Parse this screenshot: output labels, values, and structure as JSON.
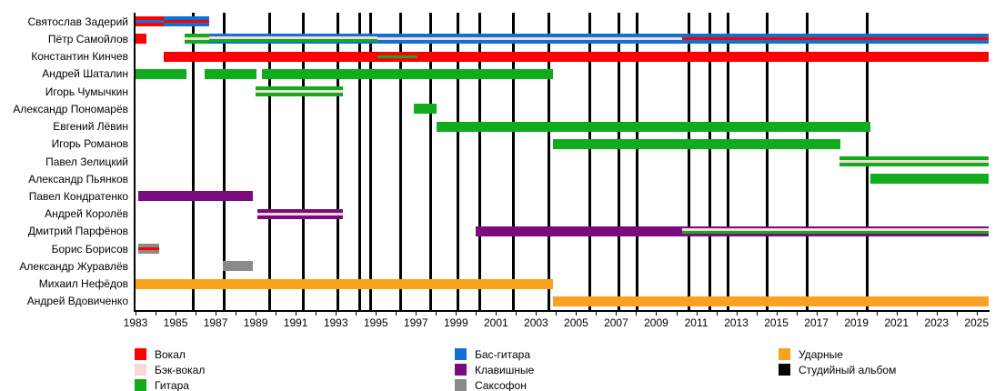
{
  "chart_data": {
    "type": "timeline",
    "title": "",
    "x_axis": {
      "min": 1983,
      "max": 2025.6,
      "labeled_ticks": [
        1983,
        1985,
        1987,
        1989,
        1991,
        1993,
        1995,
        1997,
        1999,
        2001,
        2003,
        2005,
        2007,
        2009,
        2011,
        2013,
        2015,
        2017,
        2019,
        2021,
        2023,
        2025
      ],
      "minor_tick_step": 1,
      "grid": false
    },
    "roles": {
      "vocal": {
        "label": "Вокал",
        "color": "#FF0000"
      },
      "backing_vocal": {
        "label": "Бэк-вокал",
        "color": "#F8D7D5"
      },
      "guitar": {
        "label": "Гитара",
        "color": "#10AC1E"
      },
      "bass": {
        "label": "Бас-гитара",
        "color": "#0E72D5"
      },
      "keyboards": {
        "label": "Клавишные",
        "color": "#7B0C80"
      },
      "sax": {
        "label": "Саксофон",
        "color": "#8A8A8A"
      },
      "drums": {
        "label": "Ударные",
        "color": "#FAA21F"
      },
      "album": {
        "label": "Студийный альбом",
        "color": "#000000"
      }
    },
    "members": [
      {
        "name": "Святослав Задерий",
        "segments": [
          {
            "start": 1983.0,
            "end": 1984.4,
            "base": "vocal",
            "stripes": [
              "bass"
            ]
          },
          {
            "start": 1984.4,
            "end": 1986.7,
            "base": "bass",
            "stripes": [
              "vocal"
            ]
          }
        ]
      },
      {
        "name": "Пётр Самойлов",
        "segments": [
          {
            "start": 1983.0,
            "end": 1983.55,
            "base": "vocal",
            "stripes": []
          },
          {
            "start": 1985.45,
            "end": 1986.7,
            "base": "guitar",
            "stripes": [
              "backing_vocal"
            ]
          },
          {
            "start": 1986.7,
            "end": 1995.1,
            "base": "bass",
            "stripes": [
              "backing_vocal",
              "guitar"
            ]
          },
          {
            "start": 1995.1,
            "end": 2010.3,
            "base": "bass",
            "stripes": [
              "backing_vocal"
            ]
          },
          {
            "start": 2010.3,
            "end": 2025.6,
            "base": "bass",
            "stripes": [
              "vocal"
            ]
          }
        ]
      },
      {
        "name": "Константин Кинчев",
        "segments": [
          {
            "start": 1984.4,
            "end": 1995.1,
            "base": "vocal",
            "stripes": []
          },
          {
            "start": 1995.1,
            "end": 1997.1,
            "base": "vocal",
            "stripes": [
              "guitar"
            ]
          },
          {
            "start": 1997.1,
            "end": 2025.6,
            "base": "vocal",
            "stripes": []
          }
        ]
      },
      {
        "name": "Андрей Шаталин",
        "segments": [
          {
            "start": 1983.0,
            "end": 1985.55,
            "base": "guitar",
            "stripes": []
          },
          {
            "start": 1986.45,
            "end": 1989.05,
            "base": "guitar",
            "stripes": []
          },
          {
            "start": 1989.3,
            "end": 2003.85,
            "base": "guitar",
            "stripes": []
          }
        ]
      },
      {
        "name": "Игорь Чумычкин",
        "segments": [
          {
            "start": 1989.0,
            "end": 1993.35,
            "base": "guitar",
            "stripes": [
              "backing_vocal"
            ]
          }
        ]
      },
      {
        "name": "Александр Пономарёв",
        "segments": [
          {
            "start": 1996.9,
            "end": 1998.05,
            "base": "guitar",
            "stripes": []
          }
        ]
      },
      {
        "name": "Евгений Лёвин",
        "segments": [
          {
            "start": 1998.05,
            "end": 2019.7,
            "base": "guitar",
            "stripes": []
          }
        ]
      },
      {
        "name": "Игорь Романов",
        "segments": [
          {
            "start": 2003.85,
            "end": 2018.2,
            "base": "guitar",
            "stripes": []
          }
        ]
      },
      {
        "name": "Павел Зелицкий",
        "segments": [
          {
            "start": 2018.15,
            "end": 2025.6,
            "base": "guitar",
            "stripes": [
              "backing_vocal"
            ]
          }
        ]
      },
      {
        "name": "Александр Пьянков",
        "segments": [
          {
            "start": 2019.7,
            "end": 2025.6,
            "base": "guitar",
            "stripes": []
          }
        ]
      },
      {
        "name": "Павел Кондратенко",
        "segments": [
          {
            "start": 1983.15,
            "end": 1988.85,
            "base": "keyboards",
            "stripes": []
          }
        ]
      },
      {
        "name": "Андрей Королёв",
        "segments": [
          {
            "start": 1989.1,
            "end": 1993.35,
            "base": "keyboards",
            "stripes": [
              "backing_vocal"
            ]
          }
        ]
      },
      {
        "name": "Дмитрий Парфёнов",
        "segments": [
          {
            "start": 2000.0,
            "end": 2010.3,
            "base": "keyboards",
            "stripes": []
          },
          {
            "start": 2010.3,
            "end": 2025.6,
            "base": "keyboards",
            "stripes": [
              "backing_vocal",
              "guitar"
            ]
          }
        ]
      },
      {
        "name": "Борис Борисов",
        "segments": [
          {
            "start": 1983.15,
            "end": 1984.2,
            "base": "sax",
            "stripes": [
              "vocal"
            ]
          }
        ]
      },
      {
        "name": "Александр Журавлёв",
        "segments": [
          {
            "start": 1987.35,
            "end": 1988.85,
            "base": "sax",
            "stripes": []
          }
        ]
      },
      {
        "name": "Михаил Нефёдов",
        "segments": [
          {
            "start": 1983.0,
            "end": 2003.85,
            "base": "drums",
            "stripes": []
          }
        ]
      },
      {
        "name": "Андрей Вдовиченко",
        "segments": [
          {
            "start": 2003.85,
            "end": 2025.6,
            "base": "drums",
            "stripes": []
          }
        ]
      }
    ],
    "album_lines_years": [
      1985.9,
      1987.45,
      1989.7,
      1991.4,
      1993.1,
      1994.2,
      1994.75,
      1996.25,
      1997.75,
      1999.1,
      2000.2,
      2001.85,
      2003.65,
      2005.7,
      2007.15,
      2008.05,
      2010.65,
      2011.7,
      2012.6,
      2014.55,
      2016.55,
      2019.55
    ],
    "legend": {
      "columns": [
        {
          "items": [
            {
              "role": "vocal",
              "label": "Вокал"
            },
            {
              "role": "backing_vocal",
              "label": "Бэк-вокал"
            },
            {
              "role": "guitar",
              "label": "Гитара"
            }
          ]
        },
        {
          "items": [
            {
              "role": "bass",
              "label": "Бас-гитара"
            },
            {
              "role": "keyboards",
              "label": "Клавишные"
            },
            {
              "role": "sax",
              "label": "Саксофон"
            }
          ]
        },
        {
          "items": [
            {
              "role": "drums",
              "label": "Ударные"
            },
            {
              "role": "album",
              "label": "Студийный альбом"
            }
          ]
        }
      ]
    }
  }
}
